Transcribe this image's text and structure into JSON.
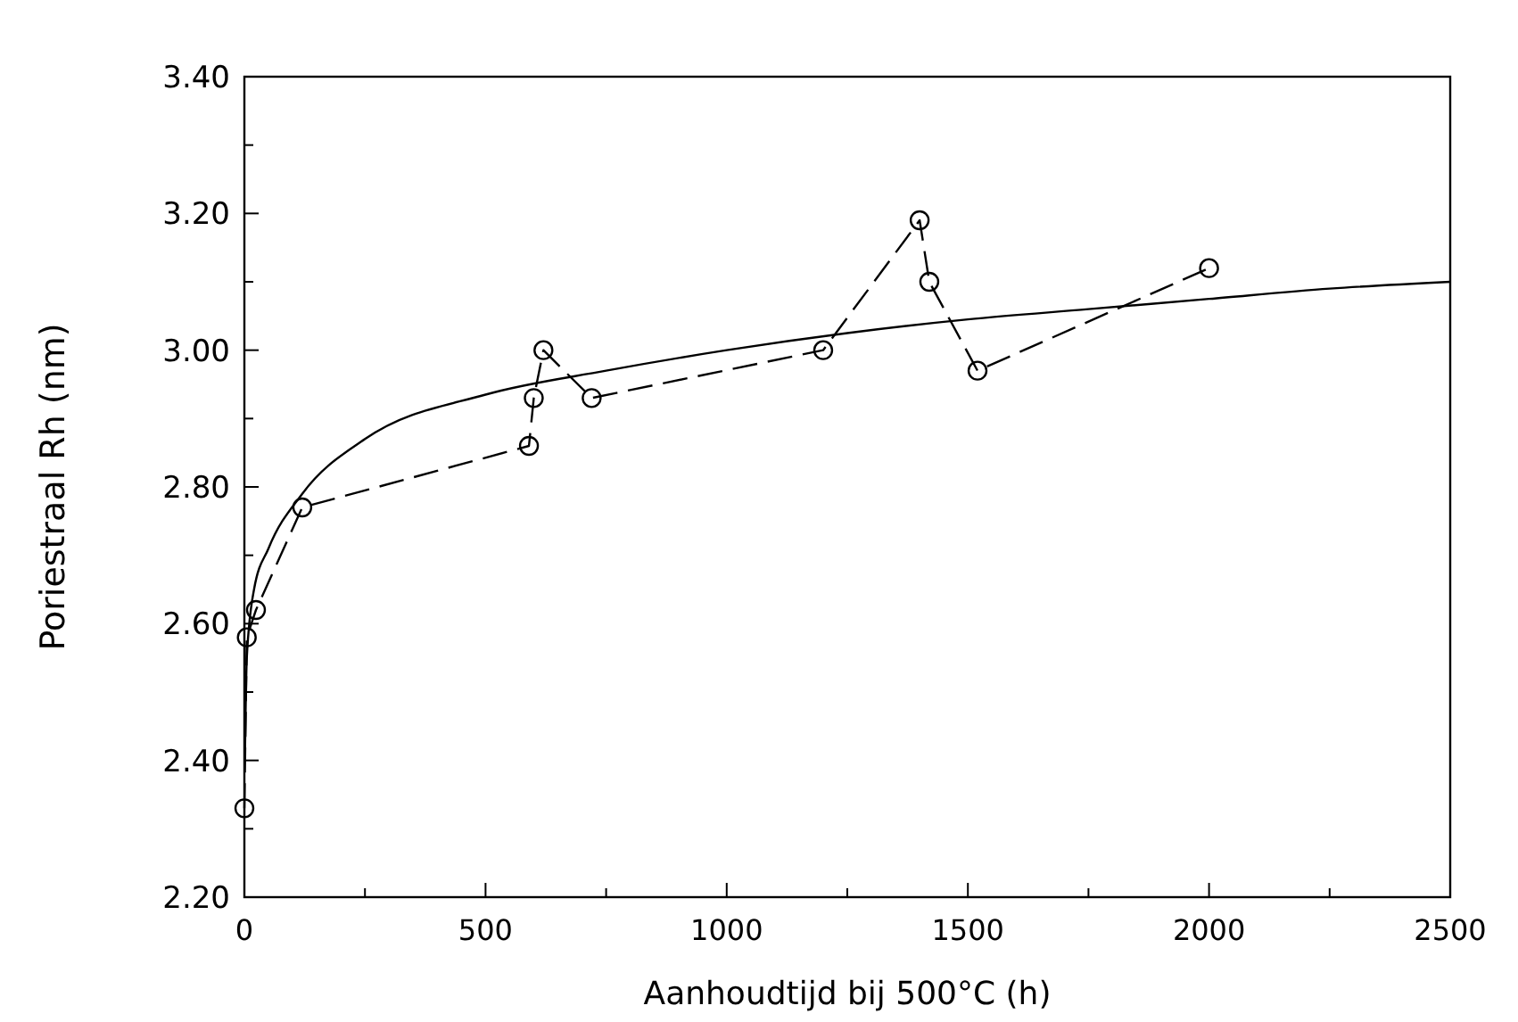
{
  "chart_data": {
    "type": "line",
    "xlabel": "Aanhoudtijd bij 500°C (h)",
    "ylabel": "Poriestraal Rh (nm)",
    "xlim": [
      0,
      2500
    ],
    "ylim": [
      2.2,
      3.4
    ],
    "xticks": [
      0,
      {
        "value": 250,
        "label": null
      },
      500,
      {
        "value": 750,
        "label": null
      },
      1000,
      {
        "value": 1250,
        "label": null
      },
      1500,
      {
        "value": 1750,
        "label": null
      },
      2000,
      {
        "value": 2250,
        "label": null
      },
      2500
    ],
    "yticks": [
      {
        "value": 2.2,
        "label": "2.20"
      },
      {
        "value": 2.3,
        "label": null
      },
      {
        "value": 2.4,
        "label": "2.40"
      },
      {
        "value": 2.5,
        "label": null
      },
      {
        "value": 2.6,
        "label": "2.60"
      },
      {
        "value": 2.7,
        "label": null
      },
      {
        "value": 2.8,
        "label": "2.80"
      },
      {
        "value": 2.9,
        "label": null
      },
      {
        "value": 3.0,
        "label": "3.00"
      },
      {
        "value": 3.1,
        "label": null
      },
      {
        "value": 3.2,
        "label": "3.20"
      },
      {
        "value": 3.3,
        "label": null
      },
      {
        "value": 3.4,
        "label": "3.40"
      }
    ],
    "grid": false,
    "series": [
      {
        "color": "#000000",
        "marker": "circle",
        "line_style": "dashed",
        "x": [
          0,
          5,
          24,
          120,
          590,
          600,
          620,
          720,
          1200,
          1400,
          1420,
          1520,
          2000
        ],
        "values": [
          2.33,
          2.58,
          2.62,
          2.77,
          2.86,
          2.93,
          3.0,
          2.93,
          3.0,
          3.19,
          3.1,
          2.97,
          3.12
        ]
      },
      {
        "color": "#000000",
        "marker": "none",
        "line_style": "solid",
        "x": [
          1,
          5,
          20,
          50,
          120,
          250,
          500,
          750,
          1000,
          1250,
          1500,
          1750,
          2000,
          2250,
          2500
        ],
        "values": [
          2.4,
          2.55,
          2.65,
          2.71,
          2.79,
          2.87,
          2.935,
          2.97,
          3.0,
          3.025,
          3.045,
          3.06,
          3.075,
          3.09,
          3.1
        ]
      }
    ]
  }
}
